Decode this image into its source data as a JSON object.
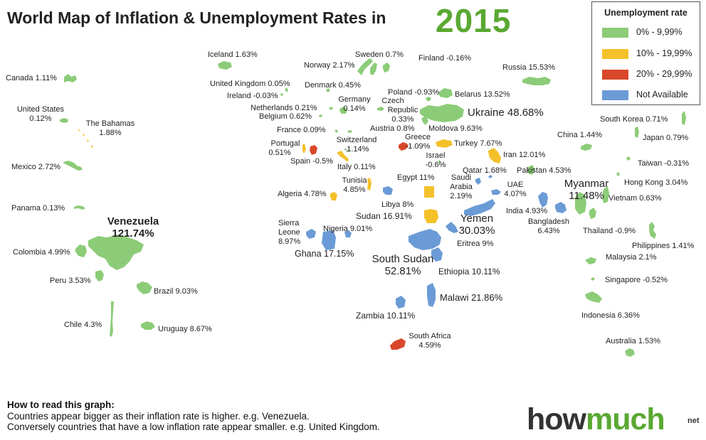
{
  "title": "World Map of Inflation & Unemployment Rates in",
  "year": "2015",
  "legend": {
    "title": "Unemployment rate",
    "items": [
      {
        "label": "0% - 9,99%",
        "color": "#8ccc78"
      },
      {
        "label": "10% - 19,99%",
        "color": "#f4c12a"
      },
      {
        "label": "20% -  29,99%",
        "color": "#d9472b"
      },
      {
        "label": "Not Available",
        "color": "#6b9bd6"
      }
    ]
  },
  "countries": [
    {
      "name": "Canada",
      "rate": "1.11%",
      "text": "Canada 1.11%",
      "color": "#8ccc78"
    },
    {
      "name": "United States",
      "rate": "0.12%",
      "text": "United States",
      "text2": "0.12%",
      "color": "#8ccc78"
    },
    {
      "name": "The Bahamas",
      "rate": "1.88%",
      "text": "The Bahamas",
      "text2": "1.88%",
      "color": "#f4c12a"
    },
    {
      "name": "Mexico",
      "rate": "2.72%",
      "text": "Mexico 2.72%",
      "color": "#8ccc78"
    },
    {
      "name": "Panama",
      "rate": "0.13%",
      "text": "Panama 0.13%",
      "color": "#8ccc78"
    },
    {
      "name": "Venezuela",
      "rate": "121.74%",
      "text": "Venezuela",
      "text2": "121.74%",
      "color": "#8ccc78"
    },
    {
      "name": "Colombia",
      "rate": "4.99%",
      "text": "Colombia 4.99%",
      "color": "#8ccc78"
    },
    {
      "name": "Peru",
      "rate": "3.53%",
      "text": "Peru 3.53%",
      "color": "#8ccc78"
    },
    {
      "name": "Brazil",
      "rate": "9.03%",
      "text": "Brazil 9.03%",
      "color": "#8ccc78"
    },
    {
      "name": "Chile",
      "rate": "4.3%",
      "text": "Chile 4.3%",
      "color": "#8ccc78"
    },
    {
      "name": "Uruguay",
      "rate": "8.67%",
      "text": "Uruguay 8.67%",
      "color": "#8ccc78"
    },
    {
      "name": "Iceland",
      "rate": "1.63%",
      "text": "Iceland 1.63%",
      "color": "#8ccc78"
    },
    {
      "name": "Norway",
      "rate": "2.17%",
      "text": "Norway 2.17%",
      "color": "#8ccc78"
    },
    {
      "name": "Sweden",
      "rate": "0.7%",
      "text": "Sweden 0.7%",
      "color": "#8ccc78"
    },
    {
      "name": "Finland",
      "rate": "-0.16%",
      "text": "Finland  -0.16%",
      "color": "#8ccc78"
    },
    {
      "name": "Russia",
      "rate": "15.53%",
      "text": "Russia 15.53%",
      "color": "#8ccc78"
    },
    {
      "name": "United Kingdom",
      "rate": "0.05%",
      "text": "United Kingdom 0.05%",
      "color": "#8ccc78"
    },
    {
      "name": "Ireland",
      "rate": "-0.03%",
      "text": "Ireland -0.03%",
      "color": "#8ccc78"
    },
    {
      "name": "Denmark",
      "rate": "0.45%",
      "text": "Denmark 0.45%",
      "color": "#8ccc78"
    },
    {
      "name": "Poland",
      "rate": "-0.93%",
      "text": "Poland -0.93%",
      "color": "#8ccc78"
    },
    {
      "name": "Belarus",
      "rate": "13.52%",
      "text": "Belarus 13.52%",
      "color": "#8ccc78"
    },
    {
      "name": "Netherlands",
      "rate": "0.21%",
      "text": "Netherlands 0.21%",
      "color": "#8ccc78"
    },
    {
      "name": "Belgium",
      "rate": "0.62%",
      "text": "Belgium 0.62%",
      "color": "#8ccc78"
    },
    {
      "name": "Germany",
      "rate": "0.14%",
      "text": "Germany",
      "text2": "0.14%",
      "color": "#8ccc78"
    },
    {
      "name": "Czech Republic",
      "rate": "0.33%",
      "text": "Czech",
      "text2": "Republic",
      "text3": "0.33%",
      "color": "#8ccc78"
    },
    {
      "name": "Ukraine",
      "rate": "48.68%",
      "text": "Ukraine 48.68%",
      "color": "#8ccc78"
    },
    {
      "name": "France",
      "rate": "0.09%",
      "text": "France 0.09%",
      "color": "#8ccc78"
    },
    {
      "name": "Austria",
      "rate": "0.8%",
      "text": "Austria 0.8%",
      "color": "#8ccc78"
    },
    {
      "name": "Moldova",
      "rate": "9.63%",
      "text": "Moldova 9.63%",
      "color": "#8ccc78"
    },
    {
      "name": "Portugal",
      "rate": "0.51%",
      "text": "Portugal",
      "text2": "0.51%",
      "color": "#f4c12a"
    },
    {
      "name": "Switzerland",
      "rate": "-1.14%",
      "text": "Switzerland",
      "text2": "-1.14%",
      "color": "#8ccc78"
    },
    {
      "name": "Greece",
      "rate": "-1.09%",
      "text": "Greece",
      "text2": "-1.09%",
      "color": "#d9472b"
    },
    {
      "name": "Turkey",
      "rate": "7.67%",
      "text": "Turkey 7.67%",
      "color": "#f4c12a"
    },
    {
      "name": "Spain",
      "rate": "-0.5%",
      "text": "Spain -0.5%",
      "color": "#d9472b"
    },
    {
      "name": "Italy",
      "rate": "0.11%",
      "text": "Italy 0.11%",
      "color": "#f4c12a"
    },
    {
      "name": "Israel",
      "rate": "-0.6%",
      "text": "Israel",
      "text2": "-0.6%",
      "color": "#8ccc78"
    },
    {
      "name": "Iran",
      "rate": "12.01%",
      "text": "Iran 12.01%",
      "color": "#f4c12a"
    },
    {
      "name": "Egypt",
      "rate": "11%",
      "text": "Egypt 11%",
      "color": "#f4c12a"
    },
    {
      "name": "Qatar",
      "rate": "1.68%",
      "text": "Qatar 1.68%",
      "color": "#6b9bd6"
    },
    {
      "name": "Pakistan",
      "rate": "4.53%",
      "text": "Pakistan 4.53%",
      "color": "#8ccc78"
    },
    {
      "name": "Tunisia",
      "rate": "4.85%",
      "text": "Tunisia",
      "text2": "4.85%",
      "color": "#f4c12a"
    },
    {
      "name": "Saudi Arabia",
      "rate": "2.19%",
      "text": "Saudi",
      "text2": "Arabia",
      "text3": "2.19%",
      "color": "#6b9bd6"
    },
    {
      "name": "UAE",
      "rate": "4.07%",
      "text": "UAE",
      "text2": "4.07%",
      "color": "#6b9bd6"
    },
    {
      "name": "Algeria",
      "rate": "4.78%",
      "text": "Algeria 4.78%",
      "color": "#f4c12a"
    },
    {
      "name": "Libya",
      "rate": "8%",
      "text": "Libya 8%",
      "color": "#6b9bd6"
    },
    {
      "name": "India",
      "rate": "4.93%",
      "text": "India 4.93%",
      "color": "#6b9bd6"
    },
    {
      "name": "Sudan",
      "rate": "16.91%",
      "text": "Sudan 16.91%",
      "color": "#f4c12a"
    },
    {
      "name": "Yemen",
      "rate": "30.03%",
      "text": "Yemen",
      "text2": "30.03%",
      "color": "#6b9bd6"
    },
    {
      "name": "Bangladesh",
      "rate": "6.43%",
      "text": "Bangladesh",
      "text2": "6.43%",
      "color": "#6b9bd6"
    },
    {
      "name": "Sierra Leone",
      "rate": "8.97%",
      "text": "Sierra",
      "text2": "Leone",
      "text3": "8.97%",
      "color": "#6b9bd6"
    },
    {
      "name": "Nigeria",
      "rate": "9.01%",
      "text": "Nigeria 9.01%",
      "color": "#6b9bd6"
    },
    {
      "name": "Ghana",
      "rate": "17.15%",
      "text": "Ghana 17.15%",
      "color": "#6b9bd6"
    },
    {
      "name": "South Sudan",
      "rate": "52.81%",
      "text": "South Sudan",
      "text2": "52.81%",
      "color": "#6b9bd6"
    },
    {
      "name": "Eritrea",
      "rate": "9%",
      "text": "Eritrea 9%",
      "color": "#6b9bd6"
    },
    {
      "name": "Ethiopia",
      "rate": "10.11%",
      "text": "Ethiopia 10.11%",
      "color": "#6b9bd6"
    },
    {
      "name": "Malawi",
      "rate": "21.86%",
      "text": "Malawi 21.86%",
      "color": "#6b9bd6"
    },
    {
      "name": "Zambia",
      "rate": "10.11%",
      "text": "Zambia 10.11%",
      "color": "#6b9bd6"
    },
    {
      "name": "South Africa",
      "rate": "4.59%",
      "text": "South Africa",
      "text2": "4.59%",
      "color": "#d9472b"
    },
    {
      "name": "South Korea",
      "rate": "0.71%",
      "text": "South Korea 0.71%",
      "color": "#8ccc78"
    },
    {
      "name": "China",
      "rate": "1.44%",
      "text": "China 1.44%",
      "color": "#8ccc78"
    },
    {
      "name": "Japan",
      "rate": "0.79%",
      "text": "Japan 0.79%",
      "color": "#8ccc78"
    },
    {
      "name": "Taiwan",
      "rate": "-0.31%",
      "text": "Taiwan -0.31%",
      "color": "#8ccc78"
    },
    {
      "name": "Myanmar",
      "rate": "11.48%",
      "text": "Myanmar",
      "text2": "11.48%",
      "color": "#8ccc78"
    },
    {
      "name": "Hong Kong",
      "rate": "3.04%",
      "text": "Hong Kong 3.04%",
      "color": "#8ccc78"
    },
    {
      "name": "Vietnam",
      "rate": "0.63%",
      "text": "Vietnam 0.63%",
      "color": "#8ccc78"
    },
    {
      "name": "Thailand",
      "rate": "-0.9%",
      "text": "Thailand -0.9%",
      "color": "#8ccc78"
    },
    {
      "name": "Philippines",
      "rate": "1.41%",
      "text": "Philippines 1.41%",
      "color": "#8ccc78"
    },
    {
      "name": "Malaysia",
      "rate": "2.1%",
      "text": "Malaysia 2.1%",
      "color": "#8ccc78"
    },
    {
      "name": "Singapore",
      "rate": "-0.52%",
      "text": "Singapore -0.52%",
      "color": "#8ccc78"
    },
    {
      "name": "Indonesia",
      "rate": "6.36%",
      "text": "Indonesia 6.36%",
      "color": "#8ccc78"
    },
    {
      "name": "Australia",
      "rate": "1.53%",
      "text": "Australia 1.53%",
      "color": "#8ccc78"
    }
  ],
  "howto": {
    "heading": "How to read this graph:",
    "line1": "Countries appear bigger as their inflation rate is higher. e.g. Venezuela.",
    "line2": "Conversely countries that have a low inflation rate appear smaller. e.g. United Kingdom."
  },
  "logo": {
    "part1": "how",
    "part2": "much",
    "suffix": "net"
  }
}
